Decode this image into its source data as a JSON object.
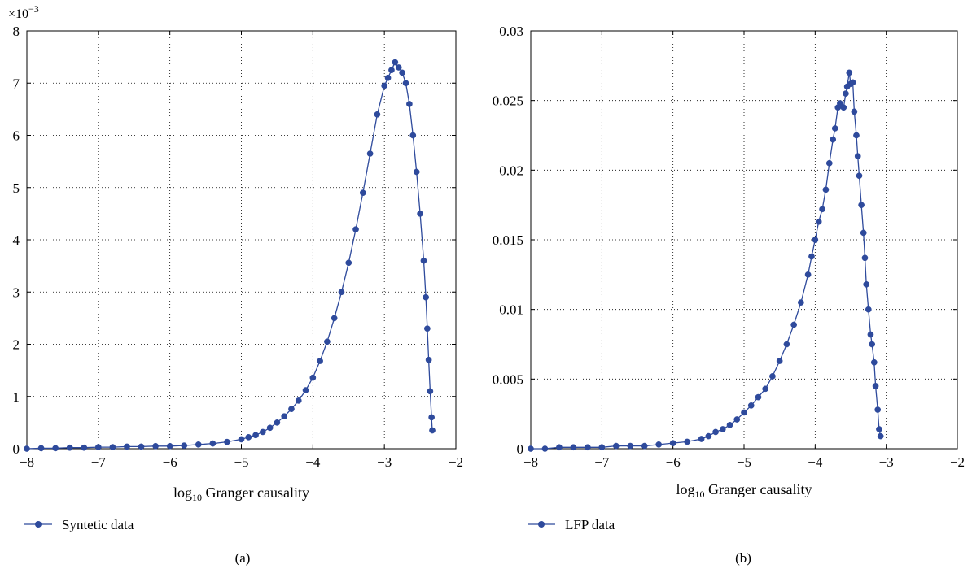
{
  "series_color": "#2e4a9c",
  "chart_data": [
    {
      "type": "line",
      "panel_label": "(a)",
      "xlabel_prefix": "log",
      "xlabel_sub": "10",
      "xlabel_rest": " Granger causality",
      "ylabel": "",
      "xlim": [
        -8,
        -2
      ],
      "ylim": [
        0,
        0.008
      ],
      "x_ticks": [
        -8,
        -7,
        -6,
        -5,
        -4,
        -3,
        -2
      ],
      "x_tick_labels": [
        "−8",
        "−7",
        "−6",
        "−5",
        "−4",
        "−3",
        "−2"
      ],
      "y_ticks": [
        0,
        0.001,
        0.002,
        0.003,
        0.004,
        0.005,
        0.006,
        0.007,
        0.008
      ],
      "y_tick_labels": [
        "0",
        "1",
        "2",
        "3",
        "4",
        "5",
        "6",
        "7",
        "8"
      ],
      "y_exponent_base": "×10",
      "y_exponent_power": "−3",
      "grid": true,
      "legend_position": "below",
      "series": [
        {
          "name": "Syntetic data",
          "points": [
            [
              -8.0,
              0.0
            ],
            [
              -7.8,
              1e-05
            ],
            [
              -7.6,
              1e-05
            ],
            [
              -7.4,
              2e-05
            ],
            [
              -7.2,
              2e-05
            ],
            [
              -7.0,
              3e-05
            ],
            [
              -6.8,
              3e-05
            ],
            [
              -6.6,
              4e-05
            ],
            [
              -6.4,
              4e-05
            ],
            [
              -6.2,
              5e-05
            ],
            [
              -6.0,
              5e-05
            ],
            [
              -5.8,
              6e-05
            ],
            [
              -5.6,
              8e-05
            ],
            [
              -5.4,
              0.0001
            ],
            [
              -5.2,
              0.00013
            ],
            [
              -5.0,
              0.00018
            ],
            [
              -4.9,
              0.00022
            ],
            [
              -4.8,
              0.00026
            ],
            [
              -4.7,
              0.00032
            ],
            [
              -4.6,
              0.0004
            ],
            [
              -4.5,
              0.0005
            ],
            [
              -4.4,
              0.00062
            ],
            [
              -4.3,
              0.00076
            ],
            [
              -4.2,
              0.00092
            ],
            [
              -4.1,
              0.00112
            ],
            [
              -4.0,
              0.00136
            ],
            [
              -3.9,
              0.00168
            ],
            [
              -3.8,
              0.00205
            ],
            [
              -3.7,
              0.0025
            ],
            [
              -3.6,
              0.003
            ],
            [
              -3.5,
              0.00356
            ],
            [
              -3.4,
              0.0042
            ],
            [
              -3.3,
              0.0049
            ],
            [
              -3.2,
              0.00565
            ],
            [
              -3.1,
              0.0064
            ],
            [
              -3.0,
              0.00695
            ],
            [
              -2.95,
              0.0071
            ],
            [
              -2.9,
              0.00725
            ],
            [
              -2.85,
              0.0074
            ],
            [
              -2.8,
              0.0073
            ],
            [
              -2.75,
              0.0072
            ],
            [
              -2.7,
              0.007
            ],
            [
              -2.65,
              0.0066
            ],
            [
              -2.6,
              0.006
            ],
            [
              -2.55,
              0.0053
            ],
            [
              -2.5,
              0.0045
            ],
            [
              -2.45,
              0.0036
            ],
            [
              -2.42,
              0.0029
            ],
            [
              -2.4,
              0.0023
            ],
            [
              -2.38,
              0.0017
            ],
            [
              -2.36,
              0.0011
            ],
            [
              -2.34,
              0.0006
            ],
            [
              -2.33,
              0.00035
            ]
          ]
        }
      ]
    },
    {
      "type": "line",
      "panel_label": "(b)",
      "xlabel_prefix": "log",
      "xlabel_sub": "10",
      "xlabel_rest": " Granger causality",
      "ylabel": "",
      "xlim": [
        -8,
        -2
      ],
      "ylim": [
        0,
        0.03
      ],
      "x_ticks": [
        -8,
        -7,
        -6,
        -5,
        -4,
        -3,
        -2
      ],
      "x_tick_labels": [
        "−8",
        "−7",
        "−6",
        "−5",
        "−4",
        "−3",
        "−2"
      ],
      "y_ticks": [
        0,
        0.005,
        0.01,
        0.015,
        0.02,
        0.025,
        0.03
      ],
      "y_tick_labels": [
        "0",
        "0.005",
        "0.01",
        "0.015",
        "0.02",
        "0.025",
        "0.03"
      ],
      "grid": true,
      "legend_position": "below",
      "series": [
        {
          "name": "LFP data",
          "points": [
            [
              -8.0,
              0.0
            ],
            [
              -7.8,
              0.0
            ],
            [
              -7.6,
              0.0001
            ],
            [
              -7.4,
              0.0001
            ],
            [
              -7.2,
              0.0001
            ],
            [
              -7.0,
              0.0001
            ],
            [
              -6.8,
              0.0002
            ],
            [
              -6.6,
              0.0002
            ],
            [
              -6.4,
              0.0002
            ],
            [
              -6.2,
              0.0003
            ],
            [
              -6.0,
              0.0004
            ],
            [
              -5.8,
              0.0005
            ],
            [
              -5.6,
              0.0007
            ],
            [
              -5.5,
              0.0009
            ],
            [
              -5.4,
              0.0012
            ],
            [
              -5.3,
              0.0014
            ],
            [
              -5.2,
              0.0017
            ],
            [
              -5.1,
              0.0021
            ],
            [
              -5.0,
              0.0026
            ],
            [
              -4.9,
              0.0031
            ],
            [
              -4.8,
              0.0037
            ],
            [
              -4.7,
              0.0043
            ],
            [
              -4.6,
              0.0052
            ],
            [
              -4.5,
              0.0063
            ],
            [
              -4.4,
              0.0075
            ],
            [
              -4.3,
              0.0089
            ],
            [
              -4.2,
              0.0105
            ],
            [
              -4.1,
              0.0125
            ],
            [
              -4.05,
              0.0138
            ],
            [
              -4.0,
              0.015
            ],
            [
              -3.95,
              0.0163
            ],
            [
              -3.9,
              0.0172
            ],
            [
              -3.85,
              0.0186
            ],
            [
              -3.8,
              0.0205
            ],
            [
              -3.75,
              0.0222
            ],
            [
              -3.72,
              0.023
            ],
            [
              -3.68,
              0.0245
            ],
            [
              -3.65,
              0.0248
            ],
            [
              -3.6,
              0.0245
            ],
            [
              -3.57,
              0.0255
            ],
            [
              -3.55,
              0.026
            ],
            [
              -3.52,
              0.027
            ],
            [
              -3.5,
              0.0262
            ],
            [
              -3.47,
              0.0263
            ],
            [
              -3.45,
              0.0242
            ],
            [
              -3.42,
              0.0225
            ],
            [
              -3.4,
              0.021
            ],
            [
              -3.38,
              0.0196
            ],
            [
              -3.35,
              0.0175
            ],
            [
              -3.32,
              0.0155
            ],
            [
              -3.3,
              0.0137
            ],
            [
              -3.28,
              0.0118
            ],
            [
              -3.25,
              0.01
            ],
            [
              -3.22,
              0.0082
            ],
            [
              -3.2,
              0.0075
            ],
            [
              -3.17,
              0.0062
            ],
            [
              -3.15,
              0.0045
            ],
            [
              -3.12,
              0.0028
            ],
            [
              -3.1,
              0.0014
            ],
            [
              -3.08,
              0.0009
            ]
          ]
        }
      ]
    }
  ]
}
